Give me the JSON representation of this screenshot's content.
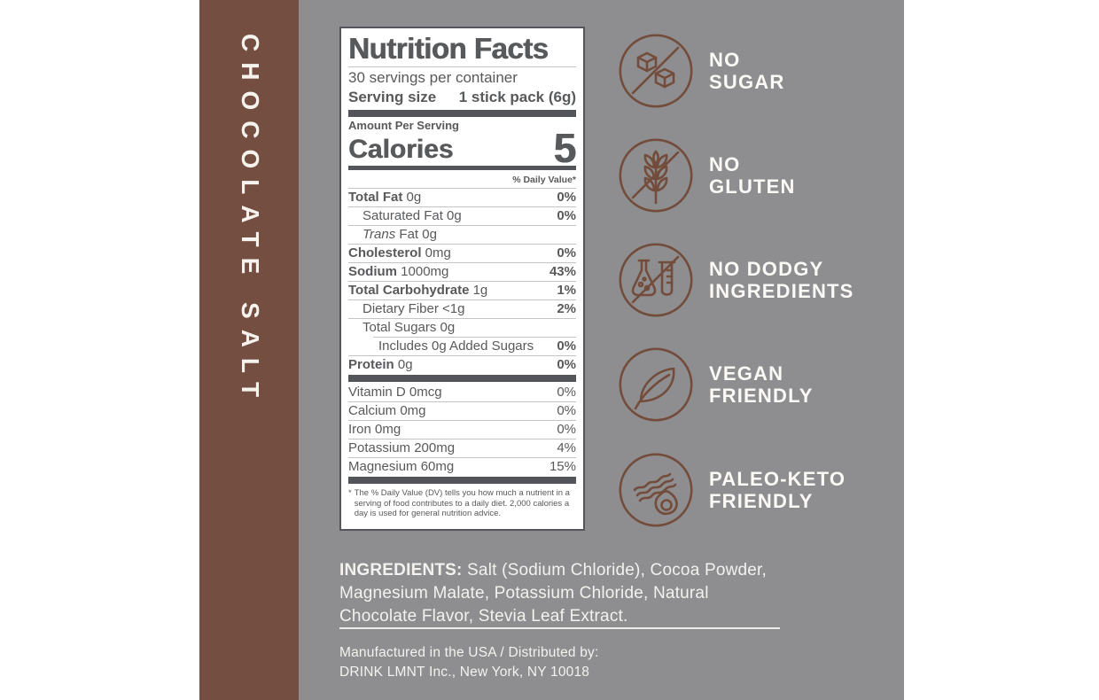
{
  "product": {
    "flavor": "CHOCOLATE SALT"
  },
  "colors": {
    "band_brown": "#744F41",
    "background_gray": "#8E8E90",
    "icon_brown": "#734C3B",
    "label_text_gray": "#58595B",
    "text_white": "#F3F2EF"
  },
  "nutrition_facts": {
    "title": "Nutrition Facts",
    "servings_per_container": "30 servings per container",
    "serving_size_label": "Serving size",
    "serving_size_value": "1 stick pack (6g)",
    "amount_per_serving": "Amount Per Serving",
    "calories_label": "Calories",
    "calories_value": "5",
    "daily_value_header": "% Daily Value*",
    "main_rows": [
      {
        "text": "Total Fat",
        "rest": " 0g",
        "dv": "0%",
        "name_bold": true,
        "dv_bold": true,
        "indent": 0
      },
      {
        "text": "",
        "rest": "Saturated Fat 0g",
        "dv": "0%",
        "dv_bold": true,
        "indent": 1
      },
      {
        "text": "Trans",
        "rest": " Fat 0g",
        "dv": "",
        "name_italic": true,
        "indent": 1
      },
      {
        "text": "Cholesterol",
        "rest": " 0mg",
        "dv": "0%",
        "name_bold": true,
        "dv_bold": true,
        "indent": 0
      },
      {
        "text": "Sodium",
        "rest": " 1000mg",
        "dv": "43%",
        "name_bold": true,
        "dv_bold": true,
        "indent": 0
      },
      {
        "text": "Total Carbohydrate",
        "rest": " 1g",
        "dv": "1%",
        "name_bold": true,
        "dv_bold": true,
        "indent": 0
      },
      {
        "text": "",
        "rest": "Dietary Fiber <1g",
        "dv": "2%",
        "dv_bold": true,
        "indent": 1
      },
      {
        "text": "",
        "rest": "Total Sugars 0g",
        "dv": "",
        "indent": 1
      },
      {
        "text": "",
        "rest": "Includes 0g Added Sugars",
        "dv": "0%",
        "dv_bold": true,
        "indent": 2,
        "sep_indent": true
      },
      {
        "text": "Protein",
        "rest": " 0g",
        "dv": "0%",
        "name_bold": true,
        "dv_bold": true,
        "indent": 0
      }
    ],
    "micro_rows": [
      {
        "text": "",
        "rest": "Vitamin D 0mcg",
        "dv": "0%",
        "indent": 0,
        "no_sep": true
      },
      {
        "text": "",
        "rest": "Calcium 0mg",
        "dv": "0%",
        "indent": 0
      },
      {
        "text": "",
        "rest": "Iron 0mg",
        "dv": "0%",
        "indent": 0
      },
      {
        "text": "",
        "rest": "Potassium 200mg",
        "dv": "4%",
        "indent": 0
      },
      {
        "text": "",
        "rest": "Magnesium 60mg",
        "dv": "15%",
        "indent": 0
      }
    ],
    "footnote_marker": "*",
    "footnote": "The % Daily Value (DV) tells you how much a nutrient in a serving of food contributes to a daily diet. 2,000 calories a day is used for general nutrition advice."
  },
  "claims": [
    {
      "icon": "no-sugar-icon",
      "line1": "NO",
      "line2": "SUGAR"
    },
    {
      "icon": "no-gluten-icon",
      "line1": "NO",
      "line2": "GLUTEN"
    },
    {
      "icon": "no-dodgy-ingredients-icon",
      "line1": "NO DODGY",
      "line2": "INGREDIENTS"
    },
    {
      "icon": "vegan-friendly-icon",
      "line1": "VEGAN",
      "line2": "FRIENDLY"
    },
    {
      "icon": "paleo-keto-friendly-icon",
      "line1": "PALEO-KETO",
      "line2": "FRIENDLY"
    }
  ],
  "ingredients": {
    "label": "INGREDIENTS:",
    "text": " Salt (Sodium Chloride), Cocoa Powder, Magnesium Malate, Potassium Chloride,  Natural Chocolate Flavor, Stevia Leaf Extract."
  },
  "distribution": {
    "line1": "Manufactured in the USA / Distributed by:",
    "line2": "DRINK LMNT Inc., New York, NY 10018"
  }
}
